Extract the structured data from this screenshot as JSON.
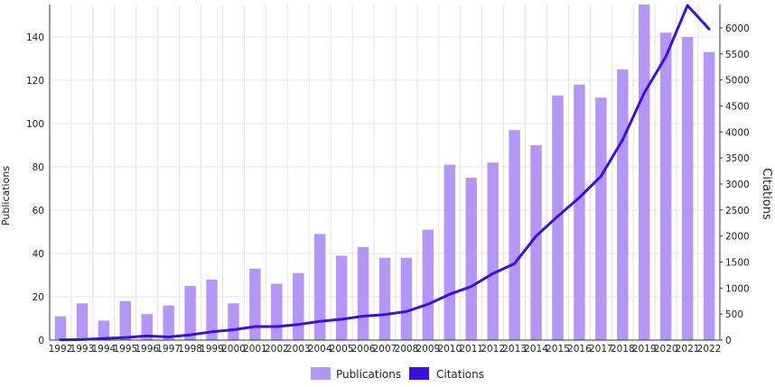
{
  "chart_data": {
    "type": "bar",
    "categories": [
      "1992",
      "1993",
      "1994",
      "1995",
      "1996",
      "1997",
      "1998",
      "1999",
      "2000",
      "2001",
      "2002",
      "2003",
      "2004",
      "2005",
      "2006",
      "2007",
      "2008",
      "2009",
      "2010",
      "2011",
      "2012",
      "2013",
      "2014",
      "2015",
      "2016",
      "2017",
      "2018",
      "2019",
      "2020",
      "2021",
      "2022"
    ],
    "series": [
      {
        "name": "Publications",
        "type": "bar",
        "axis": "left",
        "color": "#b497f5",
        "values": [
          11,
          17,
          9,
          18,
          12,
          16,
          25,
          28,
          17,
          33,
          26,
          31,
          49,
          39,
          43,
          38,
          38,
          51,
          81,
          75,
          82,
          97,
          90,
          113,
          118,
          112,
          125,
          155,
          142,
          140,
          133
        ]
      },
      {
        "name": "Citations",
        "type": "line",
        "axis": "right",
        "color": "#3a0fe0",
        "values": [
          5,
          10,
          30,
          50,
          80,
          60,
          100,
          160,
          200,
          260,
          260,
          300,
          360,
          400,
          460,
          490,
          550,
          690,
          880,
          1030,
          1280,
          1470,
          2000,
          2380,
          2740,
          3150,
          3850,
          4750,
          5450,
          6450,
          5980
        ]
      }
    ],
    "ylabel": "Publications",
    "ylabel_right": "Citations",
    "ylim": [
      0,
      155
    ],
    "ylim_right": [
      0,
      6450
    ],
    "yticks": [
      "0",
      "20",
      "40",
      "60",
      "80",
      "100",
      "120",
      "140"
    ],
    "yticks_right": [
      "0",
      "500",
      "1000",
      "1500",
      "2000",
      "2500",
      "3000",
      "3500",
      "4000",
      "4500",
      "5000",
      "5500",
      "6000"
    ],
    "grid": true,
    "legend_position": "bottom"
  }
}
